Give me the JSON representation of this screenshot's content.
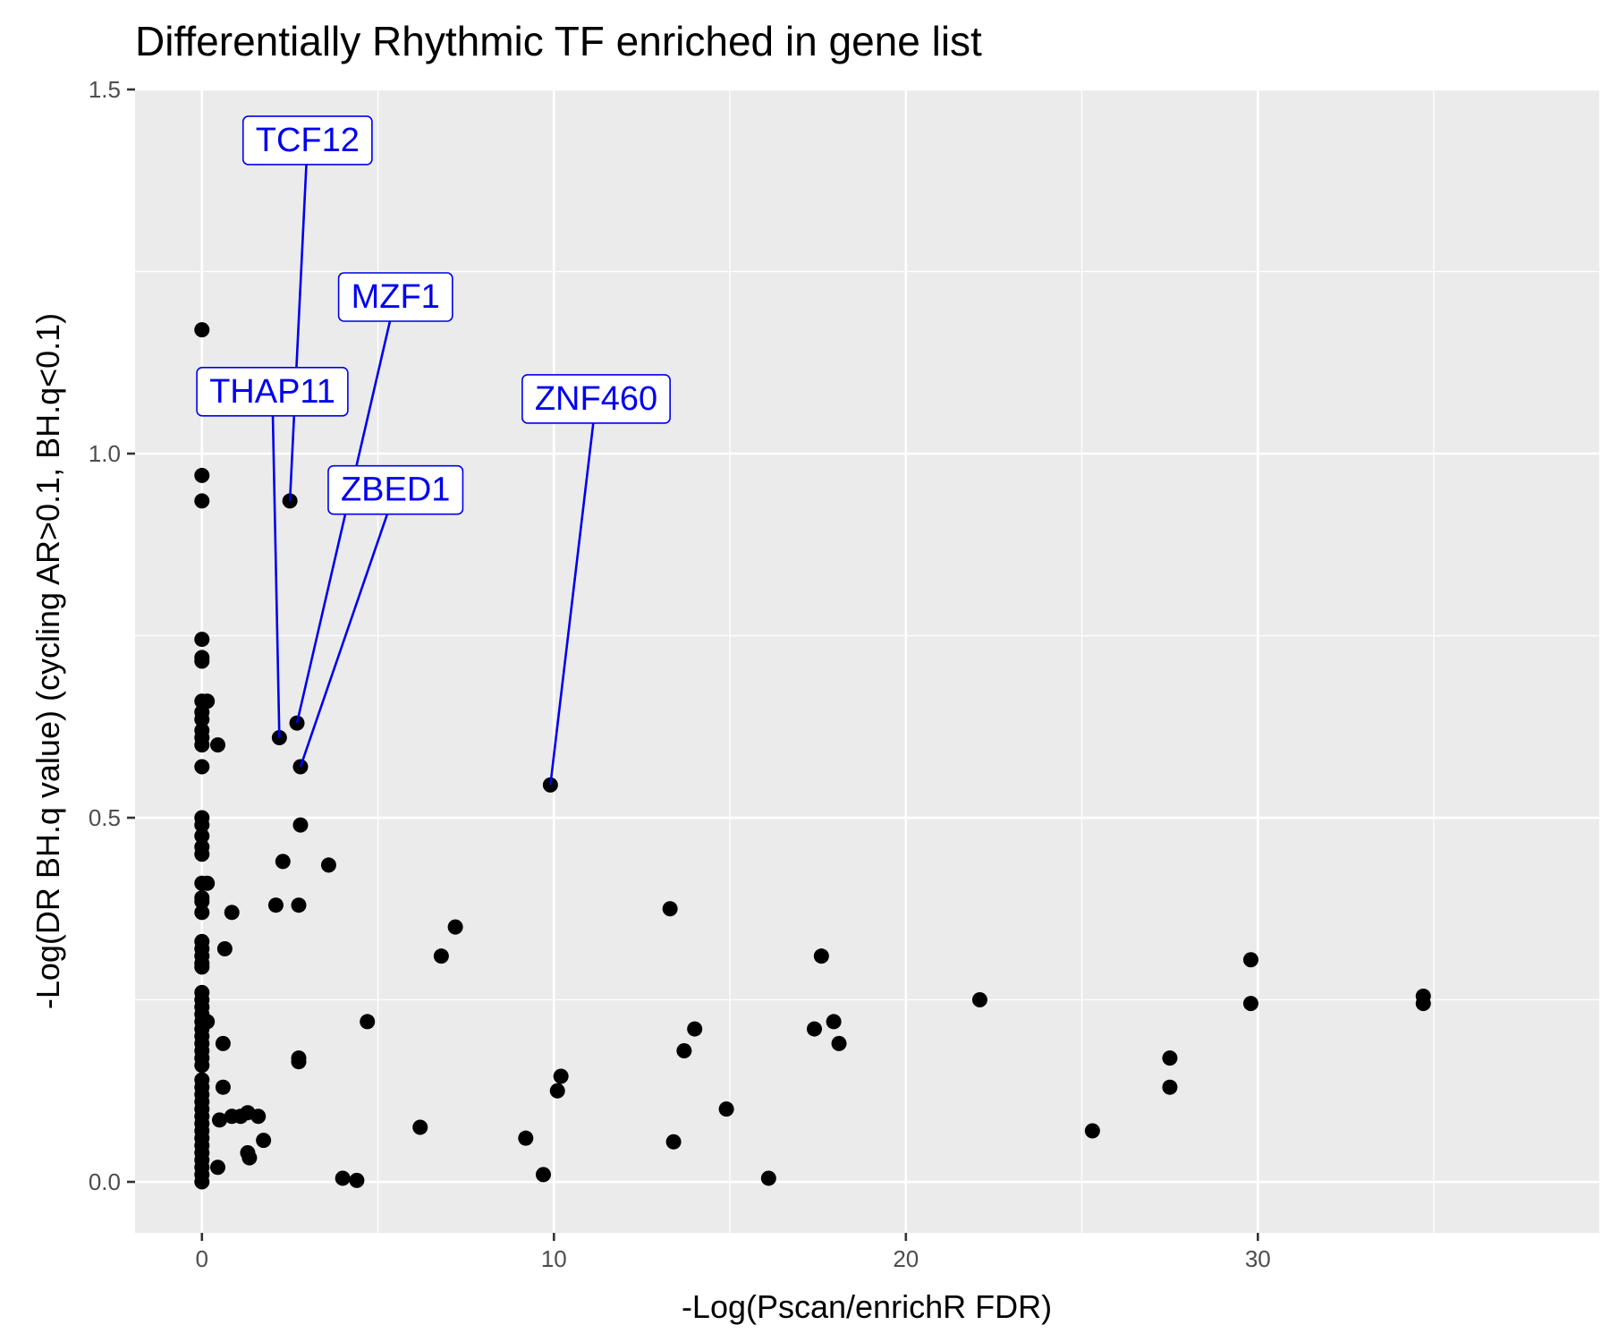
{
  "chart_data": {
    "type": "scatter",
    "title": "Differentially Rhythmic TF enriched in gene list",
    "xlabel": "-Log(Pscan/enrichR FDR)",
    "ylabel": "-Log(DR BH.q value)  (cycling AR>0.1, BH.q<0.1)",
    "xlim": [
      -1.9,
      39.7
    ],
    "ylim": [
      -0.07,
      1.5
    ],
    "x_ticks": [
      0,
      10,
      20,
      30
    ],
    "x_tick_labels": [
      "0",
      "10",
      "20",
      "30"
    ],
    "y_ticks": [
      0.0,
      0.5,
      1.0,
      1.5
    ],
    "y_tick_labels": [
      "0.0",
      "0.5",
      "1.0",
      "1.5"
    ],
    "grid": true,
    "legend": "none",
    "colors": {
      "panel": "#ebebeb",
      "grid": "#ffffff",
      "point": "#000000",
      "label": "#0000ee"
    },
    "points": [
      {
        "x": 0.0,
        "y": 1.17
      },
      {
        "x": 0.0,
        "y": 0.97
      },
      {
        "x": 0.0,
        "y": 0.935
      },
      {
        "x": 0.0,
        "y": 0.745
      },
      {
        "x": 0.0,
        "y": 0.72
      },
      {
        "x": 0.0,
        "y": 0.715
      },
      {
        "x": 0.0,
        "y": 0.66
      },
      {
        "x": 0.0,
        "y": 0.645
      },
      {
        "x": 0.0,
        "y": 0.635
      },
      {
        "x": 0.0,
        "y": 0.62
      },
      {
        "x": 0.0,
        "y": 0.61
      },
      {
        "x": 0.0,
        "y": 0.6
      },
      {
        "x": 0.0,
        "y": 0.57
      },
      {
        "x": 0.0,
        "y": 0.5
      },
      {
        "x": 0.0,
        "y": 0.49
      },
      {
        "x": 0.0,
        "y": 0.475
      },
      {
        "x": 0.0,
        "y": 0.46
      },
      {
        "x": 0.0,
        "y": 0.45
      },
      {
        "x": 0.0,
        "y": 0.41
      },
      {
        "x": 0.0,
        "y": 0.39
      },
      {
        "x": 0.0,
        "y": 0.385
      },
      {
        "x": 0.0,
        "y": 0.37
      },
      {
        "x": 0.0,
        "y": 0.33
      },
      {
        "x": 0.0,
        "y": 0.32
      },
      {
        "x": 0.0,
        "y": 0.31
      },
      {
        "x": 0.0,
        "y": 0.3
      },
      {
        "x": 0.0,
        "y": 0.295
      },
      {
        "x": 0.0,
        "y": 0.26
      },
      {
        "x": 0.0,
        "y": 0.25
      },
      {
        "x": 0.0,
        "y": 0.24
      },
      {
        "x": 0.0,
        "y": 0.23
      },
      {
        "x": 0.0,
        "y": 0.22
      },
      {
        "x": 0.0,
        "y": 0.21
      },
      {
        "x": 0.0,
        "y": 0.2
      },
      {
        "x": 0.0,
        "y": 0.19
      },
      {
        "x": 0.0,
        "y": 0.18
      },
      {
        "x": 0.0,
        "y": 0.17
      },
      {
        "x": 0.0,
        "y": 0.16
      },
      {
        "x": 0.0,
        "y": 0.14
      },
      {
        "x": 0.0,
        "y": 0.13
      },
      {
        "x": 0.0,
        "y": 0.12
      },
      {
        "x": 0.0,
        "y": 0.11
      },
      {
        "x": 0.0,
        "y": 0.1
      },
      {
        "x": 0.0,
        "y": 0.09
      },
      {
        "x": 0.0,
        "y": 0.08
      },
      {
        "x": 0.0,
        "y": 0.07
      },
      {
        "x": 0.0,
        "y": 0.06
      },
      {
        "x": 0.0,
        "y": 0.05
      },
      {
        "x": 0.0,
        "y": 0.04
      },
      {
        "x": 0.0,
        "y": 0.03
      },
      {
        "x": 0.0,
        "y": 0.02
      },
      {
        "x": 0.0,
        "y": 0.01
      },
      {
        "x": 0.0,
        "y": 0.0
      },
      {
        "x": 0.15,
        "y": 0.66
      },
      {
        "x": 0.15,
        "y": 0.41
      },
      {
        "x": 0.15,
        "y": 0.22
      },
      {
        "x": 0.45,
        "y": 0.6
      },
      {
        "x": 0.45,
        "y": 0.02
      },
      {
        "x": 0.5,
        "y": 0.085
      },
      {
        "x": 0.6,
        "y": 0.19
      },
      {
        "x": 0.6,
        "y": 0.13
      },
      {
        "x": 0.65,
        "y": 0.32
      },
      {
        "x": 0.85,
        "y": 0.37
      },
      {
        "x": 0.85,
        "y": 0.09
      },
      {
        "x": 1.1,
        "y": 0.09
      },
      {
        "x": 1.3,
        "y": 0.095
      },
      {
        "x": 1.3,
        "y": 0.04
      },
      {
        "x": 1.35,
        "y": 0.033
      },
      {
        "x": 1.6,
        "y": 0.09
      },
      {
        "x": 1.75,
        "y": 0.057
      },
      {
        "x": 2.1,
        "y": 0.38
      },
      {
        "x": 2.2,
        "y": 0.61
      },
      {
        "x": 2.3,
        "y": 0.44
      },
      {
        "x": 2.5,
        "y": 0.935
      },
      {
        "x": 2.7,
        "y": 0.63
      },
      {
        "x": 2.75,
        "y": 0.38
      },
      {
        "x": 2.75,
        "y": 0.17
      },
      {
        "x": 2.75,
        "y": 0.165
      },
      {
        "x": 2.8,
        "y": 0.57
      },
      {
        "x": 2.8,
        "y": 0.49
      },
      {
        "x": 3.6,
        "y": 0.435
      },
      {
        "x": 4.0,
        "y": 0.005
      },
      {
        "x": 4.4,
        "y": 0.002
      },
      {
        "x": 4.7,
        "y": 0.22
      },
      {
        "x": 6.2,
        "y": 0.075
      },
      {
        "x": 6.8,
        "y": 0.31
      },
      {
        "x": 7.2,
        "y": 0.35
      },
      {
        "x": 9.2,
        "y": 0.06
      },
      {
        "x": 9.7,
        "y": 0.01
      },
      {
        "x": 9.9,
        "y": 0.545
      },
      {
        "x": 10.1,
        "y": 0.125
      },
      {
        "x": 10.2,
        "y": 0.145
      },
      {
        "x": 13.3,
        "y": 0.375
      },
      {
        "x": 13.4,
        "y": 0.055
      },
      {
        "x": 13.7,
        "y": 0.18
      },
      {
        "x": 14.0,
        "y": 0.21
      },
      {
        "x": 14.9,
        "y": 0.1
      },
      {
        "x": 16.1,
        "y": 0.005
      },
      {
        "x": 17.4,
        "y": 0.21
      },
      {
        "x": 17.6,
        "y": 0.31
      },
      {
        "x": 17.95,
        "y": 0.22
      },
      {
        "x": 18.1,
        "y": 0.19
      },
      {
        "x": 22.1,
        "y": 0.25
      },
      {
        "x": 25.3,
        "y": 0.07
      },
      {
        "x": 27.5,
        "y": 0.17
      },
      {
        "x": 27.5,
        "y": 0.13
      },
      {
        "x": 29.8,
        "y": 0.305
      },
      {
        "x": 29.8,
        "y": 0.245
      },
      {
        "x": 34.7,
        "y": 0.255
      },
      {
        "x": 34.7,
        "y": 0.245
      }
    ],
    "labels": [
      {
        "text": "TCF12",
        "x": 2.5,
        "y": 0.935,
        "label_x": 3.0,
        "label_y": 1.43
      },
      {
        "text": "MZF1",
        "x": 2.7,
        "y": 0.63,
        "label_x": 5.5,
        "label_y": 1.215
      },
      {
        "text": "THAP11",
        "x": 2.2,
        "y": 0.61,
        "label_x": 2.0,
        "label_y": 1.085
      },
      {
        "text": "ZBED1",
        "x": 2.8,
        "y": 0.57,
        "label_x": 5.5,
        "label_y": 0.95
      },
      {
        "text": "ZNF460",
        "x": 9.9,
        "y": 0.545,
        "label_x": 11.2,
        "label_y": 1.075
      }
    ]
  }
}
